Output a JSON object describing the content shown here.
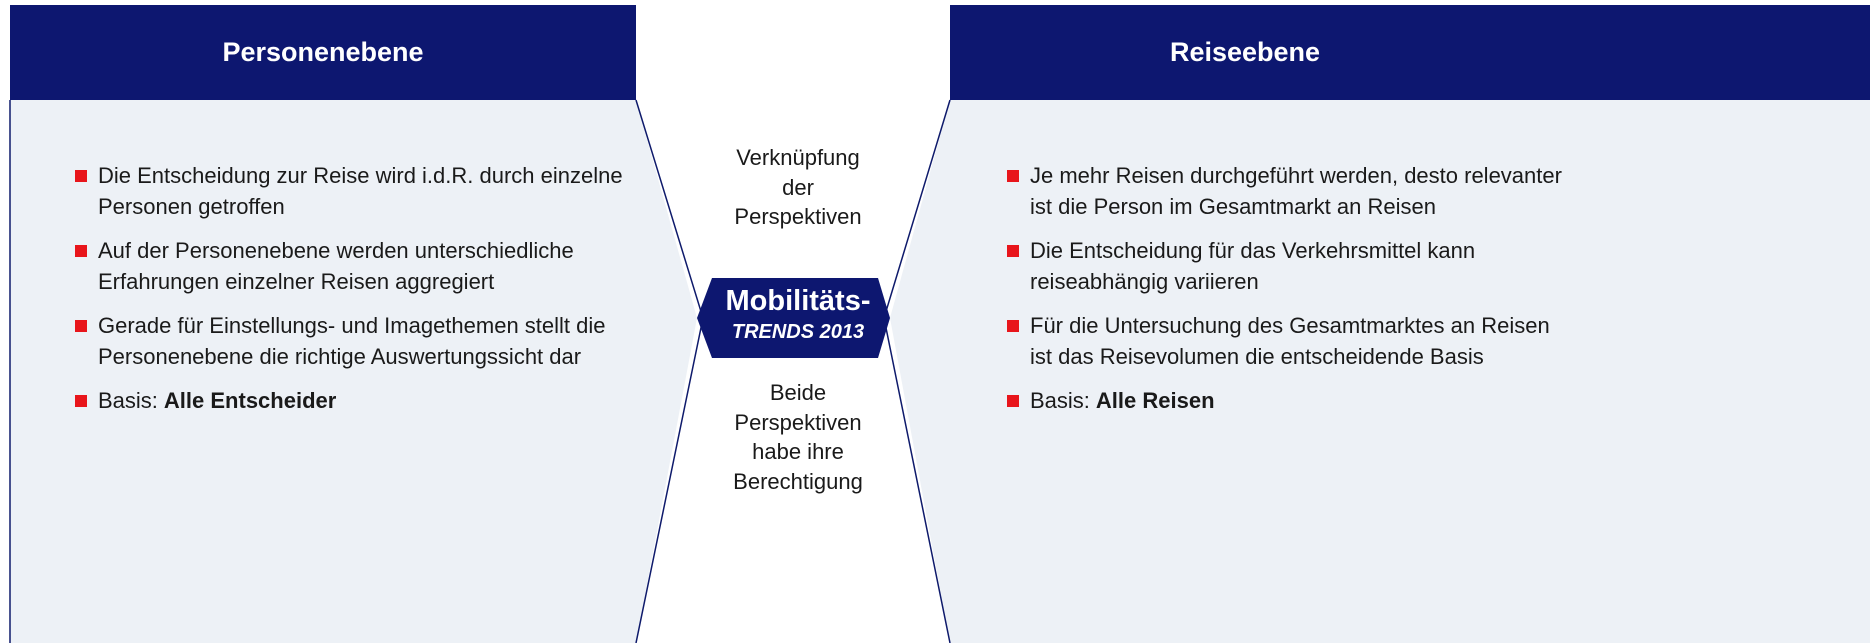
{
  "left": {
    "title": "Personenebene",
    "bullets": [
      "Die Entscheidung zur Reise wird i.d.R. durch einzelne Personen getroffen",
      "Auf der Personenebene werden unterschiedliche Erfahrungen einzelner Reisen aggregiert",
      "Gerade für Einstellungs- und Imagethemen stellt die Personenebene die richtige Auswertungssicht dar"
    ],
    "basis": {
      "prefix": "Basis:",
      "bold": "Alle Entscheider"
    }
  },
  "right": {
    "title": "Reiseebene",
    "bullets": [
      "Je mehr Reisen durchgeführt werden, desto relevanter ist die Person im Gesamtmarkt an Reisen",
      "Die Entscheidung für das Verkehrsmittel kann reiseabhängig variieren",
      "Für die Untersuchung des Gesamtmarktes an Reisen ist das Reisevolumen die entscheidende Basis"
    ],
    "basis": {
      "prefix": "Basis:",
      "bold": "Alle Reisen"
    }
  },
  "center": {
    "top": [
      "Verknüpfung",
      "der",
      "Perspektiven"
    ],
    "logo": {
      "line1": "Mobilitäts-",
      "line2": "TRENDS 2013"
    },
    "bottom": [
      "Beide",
      "Perspektiven",
      "habe ihre",
      "Berechtigung"
    ]
  }
}
